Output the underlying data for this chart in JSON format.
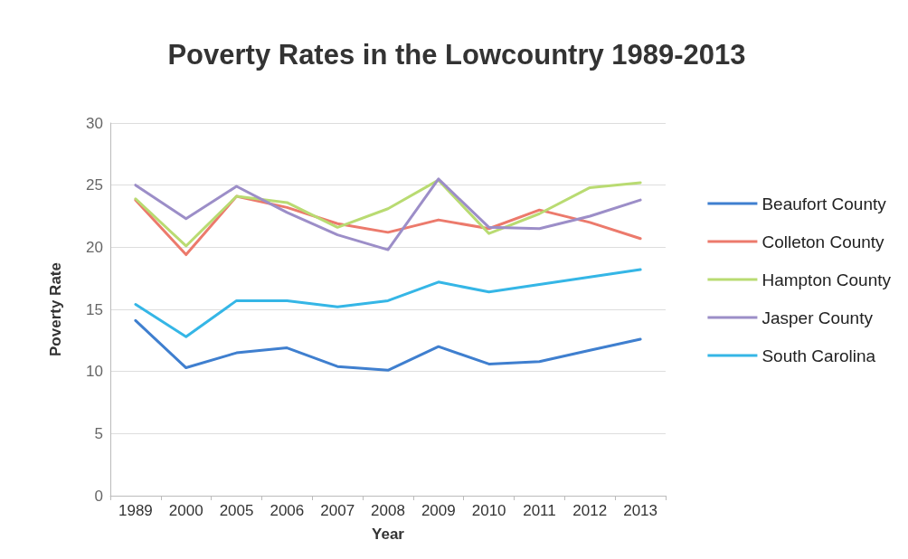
{
  "chart_data": {
    "type": "line",
    "title": "Poverty Rates in the Lowcountry 1989-2013",
    "xlabel": "Year",
    "ylabel": "Poverty Rate",
    "categories": [
      "1989",
      "2000",
      "2005",
      "2006",
      "2007",
      "2008",
      "2009",
      "2010",
      "2011",
      "2012",
      "2013"
    ],
    "series": [
      {
        "name": "Beaufort County",
        "color": "#3f7fcf",
        "values": [
          14.1,
          10.3,
          11.5,
          11.9,
          10.4,
          10.1,
          12.0,
          10.6,
          10.8,
          11.7,
          12.6
        ]
      },
      {
        "name": "Colleton County",
        "color": "#ec7a6c",
        "values": [
          23.8,
          19.4,
          24.1,
          23.2,
          21.9,
          21.2,
          22.2,
          21.5,
          23.0,
          22.0,
          20.7
        ]
      },
      {
        "name": "Hampton County",
        "color": "#b9db72",
        "values": [
          23.9,
          20.1,
          24.1,
          23.6,
          21.6,
          23.1,
          25.4,
          21.1,
          22.7,
          24.8,
          25.2
        ]
      },
      {
        "name": "Jasper County",
        "color": "#9c8ec8",
        "values": [
          25.0,
          22.3,
          24.9,
          22.8,
          21.0,
          19.8,
          25.5,
          21.6,
          21.5,
          22.5,
          23.8
        ]
      },
      {
        "name": "South Carolina",
        "color": "#35b6e6",
        "values": [
          15.4,
          12.8,
          15.7,
          15.7,
          15.2,
          15.7,
          17.2,
          16.4,
          17.0,
          17.6,
          18.2
        ]
      }
    ],
    "ylim": [
      0,
      30
    ],
    "yticks": [
      0,
      5,
      10,
      15,
      20,
      25,
      30
    ],
    "grid": "y",
    "legend": "right",
    "marker": "none",
    "line_style": "solid"
  }
}
